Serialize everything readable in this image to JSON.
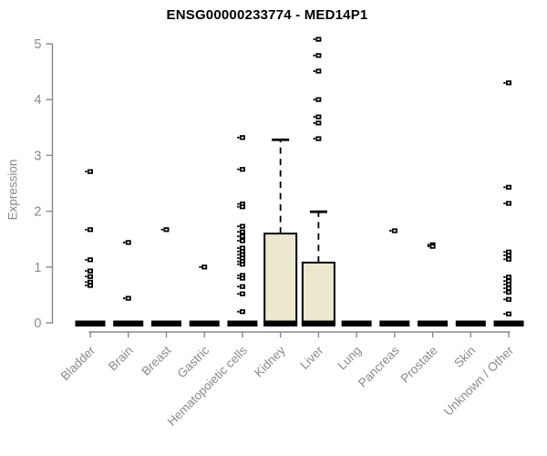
{
  "chart_data": {
    "type": "boxplot",
    "title": "ENSG00000233774 - MED14P1",
    "ylabel": "Expression",
    "xlabel": "",
    "ylim": [
      0,
      5
    ],
    "yticks": [
      0,
      1,
      2,
      3,
      4,
      5
    ],
    "grid": false,
    "legend": "none",
    "categories": [
      "Bladder",
      "Brain",
      "Breast",
      "Gastric",
      "Hematopoietic cells",
      "Kidney",
      "Liver",
      "Lung",
      "Pancreas",
      "Prostate",
      "Skin",
      "Unknown / Other"
    ],
    "boxes": [
      {
        "category": "Bladder",
        "median": 0,
        "q1": 0,
        "q3": 0,
        "whisker_low": 0,
        "whisker_high": 0,
        "outliers": [
          2.71,
          1.67,
          1.13,
          0.93,
          0.83,
          0.73,
          0.67
        ]
      },
      {
        "category": "Brain",
        "median": 0,
        "q1": 0,
        "q3": 0,
        "whisker_low": 0,
        "whisker_high": 0,
        "outliers": [
          1.44,
          0.44
        ]
      },
      {
        "category": "Breast",
        "median": 0,
        "q1": 0,
        "q3": 0,
        "whisker_low": 0,
        "whisker_high": 0,
        "outliers": [
          1.67
        ]
      },
      {
        "category": "Gastric",
        "median": 0,
        "q1": 0,
        "q3": 0,
        "whisker_low": 0,
        "whisker_high": 0,
        "outliers": [
          1.0
        ]
      },
      {
        "category": "Hematopoietic cells",
        "median": 0,
        "q1": 0,
        "q3": 0,
        "whisker_low": 0,
        "whisker_high": 0,
        "outliers": [
          3.32,
          2.75,
          2.13,
          2.08,
          1.73,
          1.63,
          1.55,
          1.47,
          1.34,
          1.28,
          1.22,
          1.16,
          1.1,
          1.05,
          0.85,
          0.8,
          0.65,
          0.52,
          0.2
        ]
      },
      {
        "category": "Kidney",
        "median": 0,
        "q1": 0,
        "q3": 1.6,
        "whisker_low": 0,
        "whisker_high": 3.28,
        "outliers": []
      },
      {
        "category": "Liver",
        "median": 0,
        "q1": 0,
        "q3": 1.08,
        "whisker_low": 0,
        "whisker_high": 1.99,
        "outliers": [
          5.08,
          4.79,
          4.51,
          4.0,
          3.69,
          3.58,
          3.3
        ]
      },
      {
        "category": "Lung",
        "median": 0,
        "q1": 0,
        "q3": 0,
        "whisker_low": 0,
        "whisker_high": 0,
        "outliers": []
      },
      {
        "category": "Pancreas",
        "median": 0,
        "q1": 0,
        "q3": 0,
        "whisker_low": 0,
        "whisker_high": 0,
        "outliers": [
          1.65
        ]
      },
      {
        "category": "Prostate",
        "median": 0,
        "q1": 0,
        "q3": 0,
        "whisker_low": 0,
        "whisker_high": 0,
        "outliers": [
          1.4,
          1.37
        ]
      },
      {
        "category": "Skin",
        "median": 0,
        "q1": 0,
        "q3": 0,
        "whisker_low": 0,
        "whisker_high": 0,
        "outliers": []
      },
      {
        "category": "Unknown / Other",
        "median": 0,
        "q1": 0,
        "q3": 0,
        "whisker_low": 0,
        "whisker_high": 0,
        "outliers": [
          4.3,
          2.43,
          2.14,
          1.27,
          1.21,
          1.14,
          0.82,
          0.75,
          0.69,
          0.62,
          0.55,
          0.42,
          0.16
        ]
      }
    ],
    "colors": {
      "box_fill": "#ece8cd",
      "box_border": "#000000",
      "median": "#000000",
      "whisker": "#000000",
      "outlier": "#000000",
      "axis": "#888888",
      "tick_label": "#8a8a8a",
      "title": "#000000"
    }
  }
}
